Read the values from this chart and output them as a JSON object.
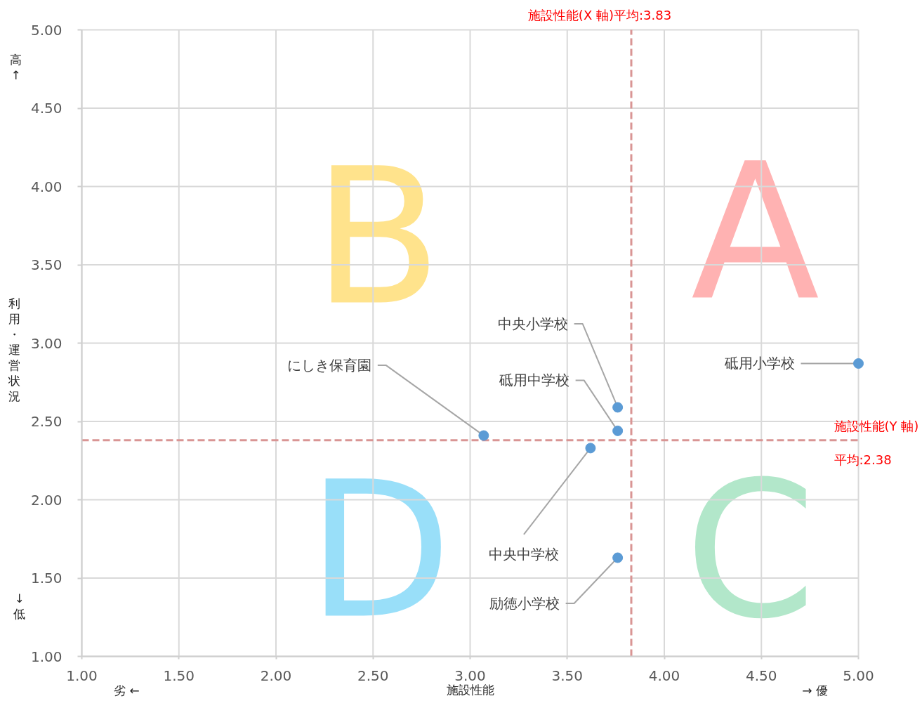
{
  "chart_data": {
    "type": "scatter",
    "xlabel": "施設性能",
    "ylabel": "利用・運営状況",
    "x": [
      3.07,
      3.76,
      3.76,
      3.62,
      3.76,
      5.0
    ],
    "series": [
      {
        "color": "#5b9bd5",
        "values": [
          2.41,
          2.59,
          2.44,
          2.33,
          1.63,
          2.87
        ]
      }
    ],
    "marker": "circle",
    "grid": true,
    "xlim": [
      1,
      5
    ],
    "ylim": [
      1,
      5
    ],
    "xticks": [
      {
        "value": 1,
        "label": "1.00"
      },
      {
        "value": 1.5,
        "label": "1.50"
      },
      {
        "value": 2,
        "label": "2.00"
      },
      {
        "value": 2.5,
        "label": "2.50"
      },
      {
        "value": 3,
        "label": "3.00"
      },
      {
        "value": 3.5,
        "label": "3.50"
      },
      {
        "value": 4,
        "label": "4.00"
      },
      {
        "value": 4.5,
        "label": "4.50"
      },
      {
        "value": 5,
        "label": "5.00"
      }
    ],
    "yticks": [
      {
        "value": 1,
        "label": "1.00"
      },
      {
        "value": 1.5,
        "label": "1.50"
      },
      {
        "value": 2,
        "label": "2.00"
      },
      {
        "value": 2.5,
        "label": "2.50"
      },
      {
        "value": 3,
        "label": "3.00"
      },
      {
        "value": 3.5,
        "label": "3.50"
      },
      {
        "value": 4,
        "label": "4.00"
      },
      {
        "value": 4.5,
        "label": "4.50"
      },
      {
        "value": 5,
        "label": "5.00"
      }
    ],
    "ref_lines": [
      {
        "axis": "x",
        "value": 3.83,
        "label": "施設性能(X 軸)平均:3.83",
        "color": "#d99594",
        "line_style": "dashed"
      },
      {
        "axis": "y",
        "value": 2.38,
        "label": "施設性能(Y 軸)\n平均:2.38",
        "color": "#d99594",
        "line_style": "dashed"
      }
    ],
    "annotations": [
      {
        "text": "にしき保育園",
        "x": 3.07,
        "y": 2.41
      },
      {
        "text": "中央小学校",
        "x": 3.76,
        "y": 2.59
      },
      {
        "text": "砥用中学校",
        "x": 3.76,
        "y": 2.44
      },
      {
        "text": "中央中学校",
        "x": 3.62,
        "y": 2.33
      },
      {
        "text": "励徳小学校",
        "x": 3.76,
        "y": 1.63
      },
      {
        "text": "砥用小学校",
        "x": 5.0,
        "y": 2.87
      },
      "A",
      "B",
      "C",
      "D",
      "劣 ←",
      "→ 優",
      "高\n↑",
      "↓\n低"
    ]
  }
}
